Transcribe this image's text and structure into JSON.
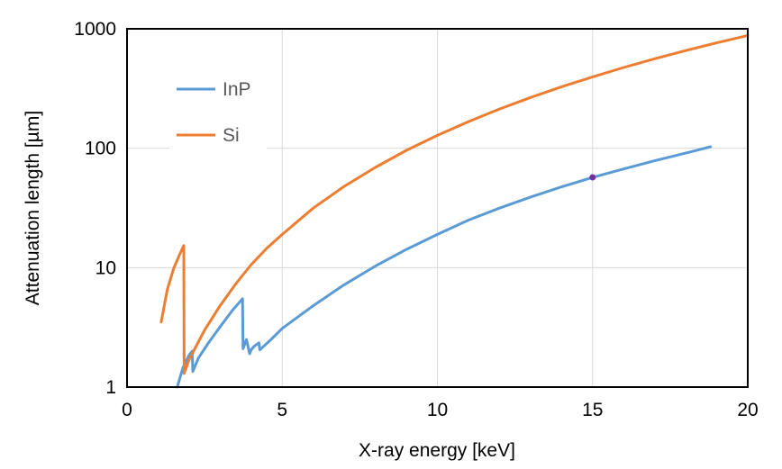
{
  "chart_data": {
    "type": "line",
    "xlabel": "X-ray energy  [keV]",
    "ylabel": "Attenuation length  [µm]",
    "xlim": [
      0,
      20
    ],
    "ylim": [
      1,
      1000
    ],
    "yscale": "log",
    "x_ticks": [
      0,
      5,
      10,
      15,
      20
    ],
    "x_tick_labels": [
      "0",
      "5",
      "10",
      "15",
      "20"
    ],
    "y_ticks": [
      1,
      10,
      100,
      1000
    ],
    "y_tick_labels": [
      "1",
      "10",
      "100",
      "1000"
    ],
    "grid": true,
    "legend_position": "top-left",
    "series": [
      {
        "name": "InP",
        "color": "#5b9bd5",
        "x": [
          1.62,
          1.8,
          2.0,
          2.1,
          2.12,
          2.3,
          2.6,
          3.0,
          3.4,
          3.72,
          3.74,
          3.85,
          3.95,
          4.0,
          4.1,
          4.25,
          4.28,
          4.6,
          5.0,
          6.0,
          7.0,
          8.0,
          9.0,
          10.0,
          11.0,
          12.0,
          13.0,
          14.0,
          15.0,
          16.0,
          17.0,
          18.0,
          18.8
        ],
        "y": [
          1.0,
          1.45,
          1.85,
          2.0,
          1.35,
          1.75,
          2.3,
          3.2,
          4.4,
          5.5,
          2.1,
          2.5,
          1.9,
          2.05,
          2.2,
          2.35,
          2.05,
          2.45,
          3.1,
          4.8,
          7.2,
          10.3,
          14.2,
          19.0,
          25.0,
          31.5,
          39.0,
          47.5,
          57.0,
          67.0,
          78.5,
          91.0,
          103.0
        ]
      },
      {
        "name": "Si",
        "color": "#ed7d31",
        "x": [
          1.1,
          1.3,
          1.5,
          1.7,
          1.83,
          1.84,
          2.0,
          2.5,
          3.0,
          3.5,
          4.0,
          4.5,
          5.0,
          6.0,
          7.0,
          8.0,
          9.0,
          10.0,
          11.0,
          12.0,
          13.0,
          14.0,
          15.0,
          16.0,
          17.0,
          18.0,
          19.0,
          20.0
        ],
        "y": [
          3.5,
          6.6,
          9.8,
          13.0,
          15.3,
          1.3,
          1.7,
          3.0,
          4.8,
          7.3,
          10.6,
          14.5,
          19.0,
          31.5,
          48.0,
          69.0,
          96.0,
          128.0,
          167.0,
          213.0,
          266.0,
          327.0,
          396.0,
          474.0,
          561.0,
          657.0,
          763.0,
          880.0
        ]
      }
    ],
    "special_points": [
      {
        "x": 15,
        "y": 57,
        "color": "#7030a0"
      }
    ]
  }
}
